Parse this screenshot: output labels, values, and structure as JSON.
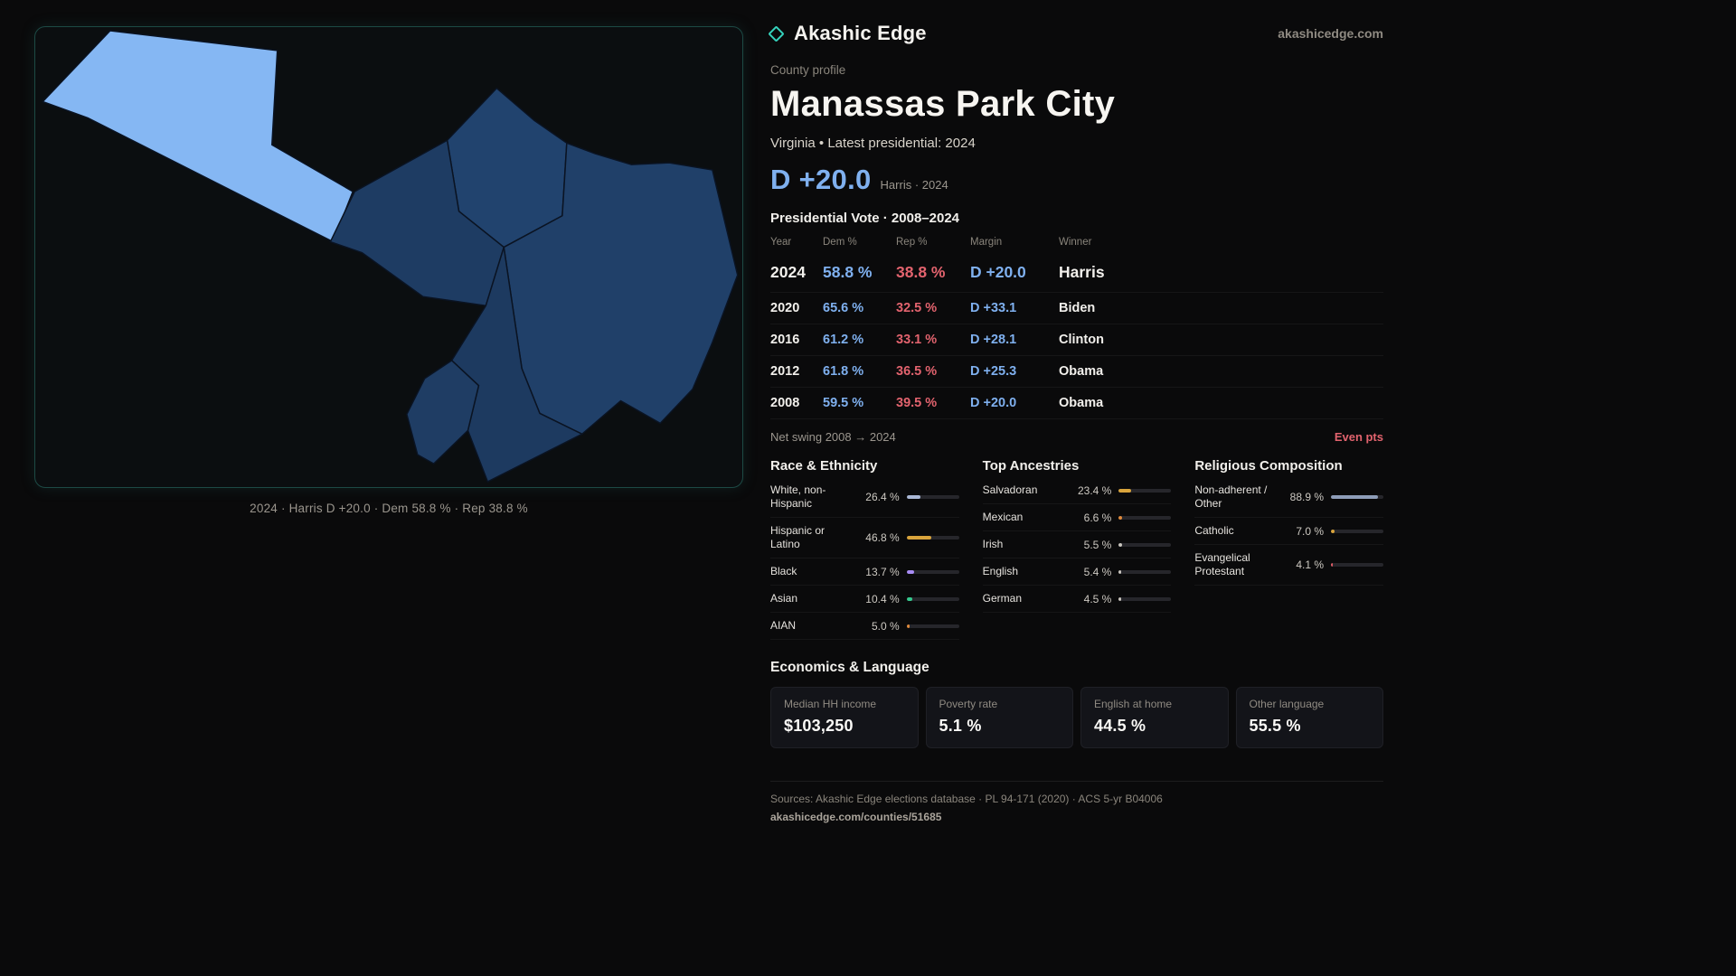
{
  "brand": {
    "name": "Akashic Edge",
    "site": "akashicedge.com",
    "accent": "#35d3bd"
  },
  "map": {
    "caption": "2024 · Harris D +20.0 · Dem 58.8 % · Rep 38.8 %",
    "dem_light_fill": "#85b7f3",
    "dem_dark_fill": "#1f3d66"
  },
  "profile": {
    "kicker": "County profile",
    "title": "Manassas Park City",
    "subtitle": "Virginia • Latest presidential: 2024",
    "headline_margin": "D +20.0",
    "headline_note": "Harris · 2024"
  },
  "vote_table": {
    "heading": "Presidential Vote · 2008–2024",
    "columns": {
      "year": "Year",
      "dem": "Dem %",
      "rep": "Rep %",
      "margin": "Margin",
      "winner": "Winner"
    },
    "rows": [
      {
        "year": "2024",
        "dem": "58.8 %",
        "rep": "38.8 %",
        "margin": "D +20.0",
        "winner": "Harris"
      },
      {
        "year": "2020",
        "dem": "65.6 %",
        "rep": "32.5 %",
        "margin": "D +33.1",
        "winner": "Biden"
      },
      {
        "year": "2016",
        "dem": "61.2 %",
        "rep": "33.1 %",
        "margin": "D +28.1",
        "winner": "Clinton"
      },
      {
        "year": "2012",
        "dem": "61.8 %",
        "rep": "36.5 %",
        "margin": "D +25.3",
        "winner": "Obama"
      },
      {
        "year": "2008",
        "dem": "59.5 %",
        "rep": "39.5 %",
        "margin": "D +20.0",
        "winner": "Obama"
      }
    ],
    "net_swing_label": "Net swing 2008 → 2024",
    "net_swing_value": "Even pts"
  },
  "demographics": [
    {
      "heading": "Race & Ethnicity",
      "rows": [
        {
          "label": "White, non-Hispanic",
          "value": "26.4 %",
          "pct": 26.4,
          "color": "#aab8d6"
        },
        {
          "label": "Hispanic or Latino",
          "value": "46.8 %",
          "pct": 46.8,
          "color": "#d9a43c"
        },
        {
          "label": "Black",
          "value": "13.7 %",
          "pct": 13.7,
          "color": "#a88cf5"
        },
        {
          "label": "Asian",
          "value": "10.4 %",
          "pct": 10.4,
          "color": "#35c98e"
        },
        {
          "label": "AIAN",
          "value": "5.0 %",
          "pct": 5.0,
          "color": "#e08a3c"
        }
      ]
    },
    {
      "heading": "Top Ancestries",
      "rows": [
        {
          "label": "Salvadoran",
          "value": "23.4 %",
          "pct": 23.4,
          "color": "#d9a43c"
        },
        {
          "label": "Mexican",
          "value": "6.6 %",
          "pct": 6.6,
          "color": "#e08a3c"
        },
        {
          "label": "Irish",
          "value": "5.5 %",
          "pct": 5.5,
          "color": "#c9c5be"
        },
        {
          "label": "English",
          "value": "5.4 %",
          "pct": 5.4,
          "color": "#c9c5be"
        },
        {
          "label": "German",
          "value": "4.5 %",
          "pct": 4.5,
          "color": "#c9c5be"
        }
      ]
    },
    {
      "heading": "Religious Composition",
      "rows": [
        {
          "label": "Non-adherent / Other",
          "value": "88.9 %",
          "pct": 88.9,
          "color": "#8e9db8"
        },
        {
          "label": "Catholic",
          "value": "7.0 %",
          "pct": 7.0,
          "color": "#d9a43c"
        },
        {
          "label": "Evangelical Protestant",
          "value": "4.1 %",
          "pct": 4.1,
          "color": "#e05c66"
        }
      ]
    }
  ],
  "economics": {
    "heading": "Economics & Language",
    "stats": [
      {
        "label": "Median HH income",
        "value": "$103,250"
      },
      {
        "label": "Poverty rate",
        "value": "5.1 %"
      },
      {
        "label": "English at home",
        "value": "44.5 %"
      },
      {
        "label": "Other language",
        "value": "55.5 %"
      }
    ]
  },
  "footer": {
    "sources": "Sources: Akashic Edge elections database · PL 94-171 (2020) · ACS 5-yr B04006",
    "permalink": "akashicedge.com/counties/51685"
  },
  "colors": {
    "dem_blue": "#7fb0ef",
    "rep_red": "#e2636e",
    "accent_teal": "#35d3bd"
  }
}
